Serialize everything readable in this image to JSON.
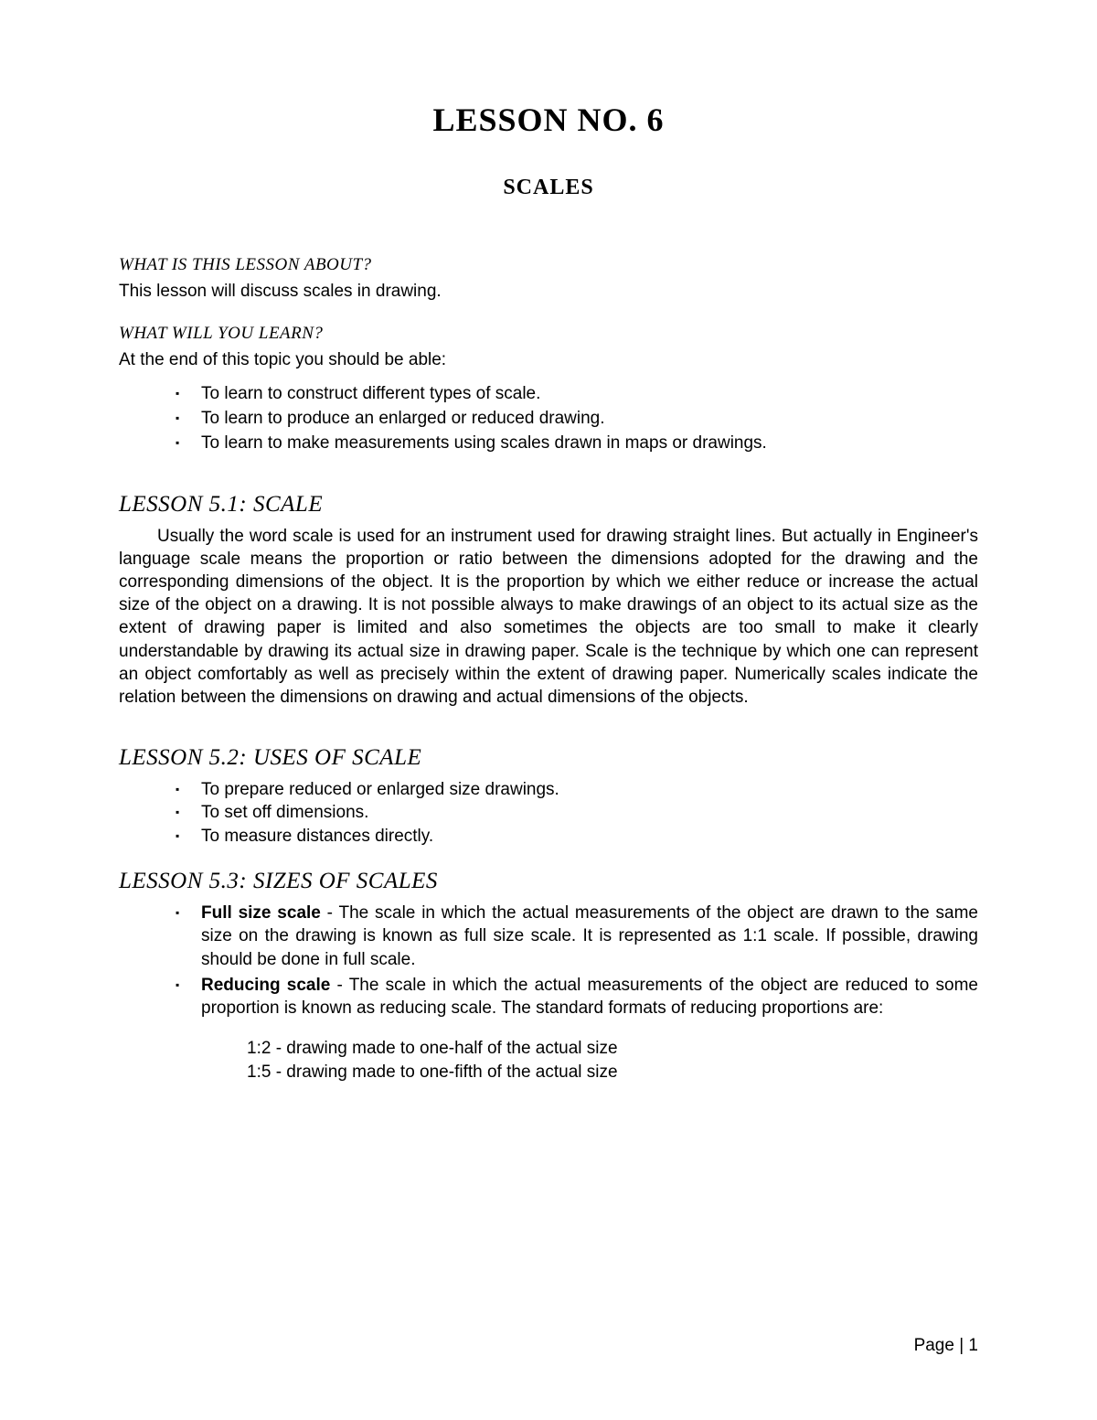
{
  "title": "LESSON NO. 6",
  "subtitle": "SCALES",
  "about": {
    "heading": "WHAT IS THIS LESSON ABOUT?",
    "text": "This lesson will discuss scales in drawing."
  },
  "learn": {
    "heading": "WHAT WILL YOU LEARN?",
    "intro": "At the end of this topic you should be able:",
    "items": [
      "To learn to construct different types of scale.",
      "To learn to produce an enlarged or reduced drawing.",
      "To learn to make measurements using scales drawn in maps or drawings."
    ]
  },
  "s51": {
    "heading": "LESSON 5.1: SCALE",
    "text": "Usually the word scale is used for an instrument used for drawing straight lines. But actually in Engineer's language scale means the proportion or ratio between the dimensions adopted for the drawing and the corresponding dimensions of the object. It is the proportion by which we either reduce or increase the actual size of the object on a drawing. It is not possible always to make drawings of an object to its actual size as the extent of drawing paper is limited and also sometimes the objects are too small to make it clearly understandable by drawing its actual size in drawing paper. Scale is the technique by which one can represent an object comfortably as well as precisely within the extent of drawing paper. Numerically scales indicate the relation between the dimensions on drawing and actual dimensions of the objects."
  },
  "s52": {
    "heading": "LESSON 5.2: USES OF SCALE",
    "items": [
      "To prepare reduced or enlarged size drawings.",
      "To set off dimensions.",
      "To measure distances directly."
    ]
  },
  "s53": {
    "heading": "LESSON 5.3: SIZES OF SCALES",
    "items": [
      {
        "term": "Full size scale",
        "text": " - The scale in which the actual measurements of the object are drawn to the same size on the drawing is known as full size scale. It is represented as 1:1 scale. If possible, drawing should be done in full scale."
      },
      {
        "term": "Reducing scale",
        "text": " - The scale in which the actual measurements of the object are reduced to some proportion is known as reducing scale. The standard formats of reducing proportions are:"
      }
    ],
    "subitems": [
      "1:2 - drawing made to one-half of the actual size",
      "1:5 - drawing made to one-fifth of the actual size"
    ]
  },
  "footer": "Page | 1"
}
